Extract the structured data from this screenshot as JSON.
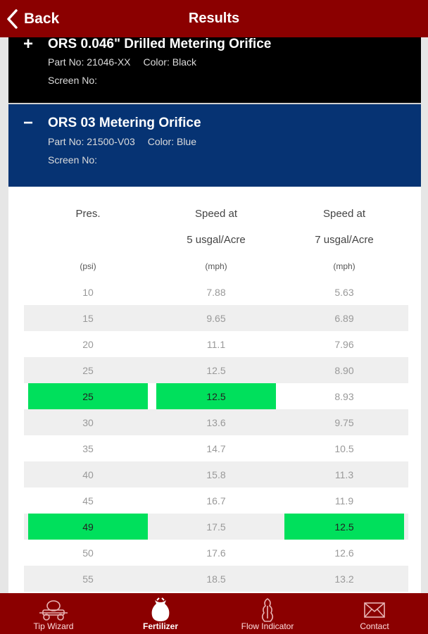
{
  "header": {
    "back_label": "Back",
    "title": "Results"
  },
  "orifices": [
    {
      "toggle": "+",
      "name": "ORS 0.046\" Drilled Metering Orifice",
      "part_label": "Part No: 21046-XX",
      "color_label": "Color: Black",
      "screen_label": "Screen No:"
    },
    {
      "toggle": "−",
      "name": "ORS 03 Metering Orifice",
      "part_label": "Part No: 21500-V03",
      "color_label": "Color: Blue",
      "screen_label": "Screen No:"
    }
  ],
  "table": {
    "headers": [
      {
        "line1": "Pres.",
        "line2": "",
        "units": "(psi)"
      },
      {
        "line1": "Speed at",
        "line2": "5 usgal/Acre",
        "units": "(mph)"
      },
      {
        "line1": "Speed at",
        "line2": "7 usgal/Acre",
        "units": "(mph)"
      }
    ],
    "rows": [
      {
        "cells": [
          "10",
          "7.88",
          "5.63"
        ],
        "hl": [
          false,
          false,
          false
        ]
      },
      {
        "cells": [
          "15",
          "9.65",
          "6.89"
        ],
        "hl": [
          false,
          false,
          false
        ]
      },
      {
        "cells": [
          "20",
          "11.1",
          "7.96"
        ],
        "hl": [
          false,
          false,
          false
        ]
      },
      {
        "cells": [
          "25",
          "12.5",
          "8.90"
        ],
        "hl": [
          false,
          false,
          false
        ]
      },
      {
        "cells": [
          "25",
          "12.5",
          "8.93"
        ],
        "hl": [
          true,
          true,
          false
        ]
      },
      {
        "cells": [
          "30",
          "13.6",
          "9.75"
        ],
        "hl": [
          false,
          false,
          false
        ]
      },
      {
        "cells": [
          "35",
          "14.7",
          "10.5"
        ],
        "hl": [
          false,
          false,
          false
        ]
      },
      {
        "cells": [
          "40",
          "15.8",
          "11.3"
        ],
        "hl": [
          false,
          false,
          false
        ]
      },
      {
        "cells": [
          "45",
          "16.7",
          "11.9"
        ],
        "hl": [
          false,
          false,
          false
        ]
      },
      {
        "cells": [
          "49",
          "17.5",
          "12.5"
        ],
        "hl": [
          true,
          false,
          true
        ]
      },
      {
        "cells": [
          "50",
          "17.6",
          "12.6"
        ],
        "hl": [
          false,
          false,
          false
        ]
      },
      {
        "cells": [
          "55",
          "18.5",
          "13.2"
        ],
        "hl": [
          false,
          false,
          false
        ]
      }
    ]
  },
  "tabs": [
    {
      "label": "Tip Wizard",
      "icon": "sprayer-icon",
      "active": false
    },
    {
      "label": "Fertilizer",
      "icon": "fertilizer-bag-icon",
      "active": true
    },
    {
      "label": "Flow Indicator",
      "icon": "flow-indicator-icon",
      "active": false
    },
    {
      "label": "Contact",
      "icon": "envelope-icon",
      "active": false
    }
  ],
  "colors": {
    "brand": "#8b0000",
    "blue": "#063373",
    "highlight": "#00e05c"
  }
}
